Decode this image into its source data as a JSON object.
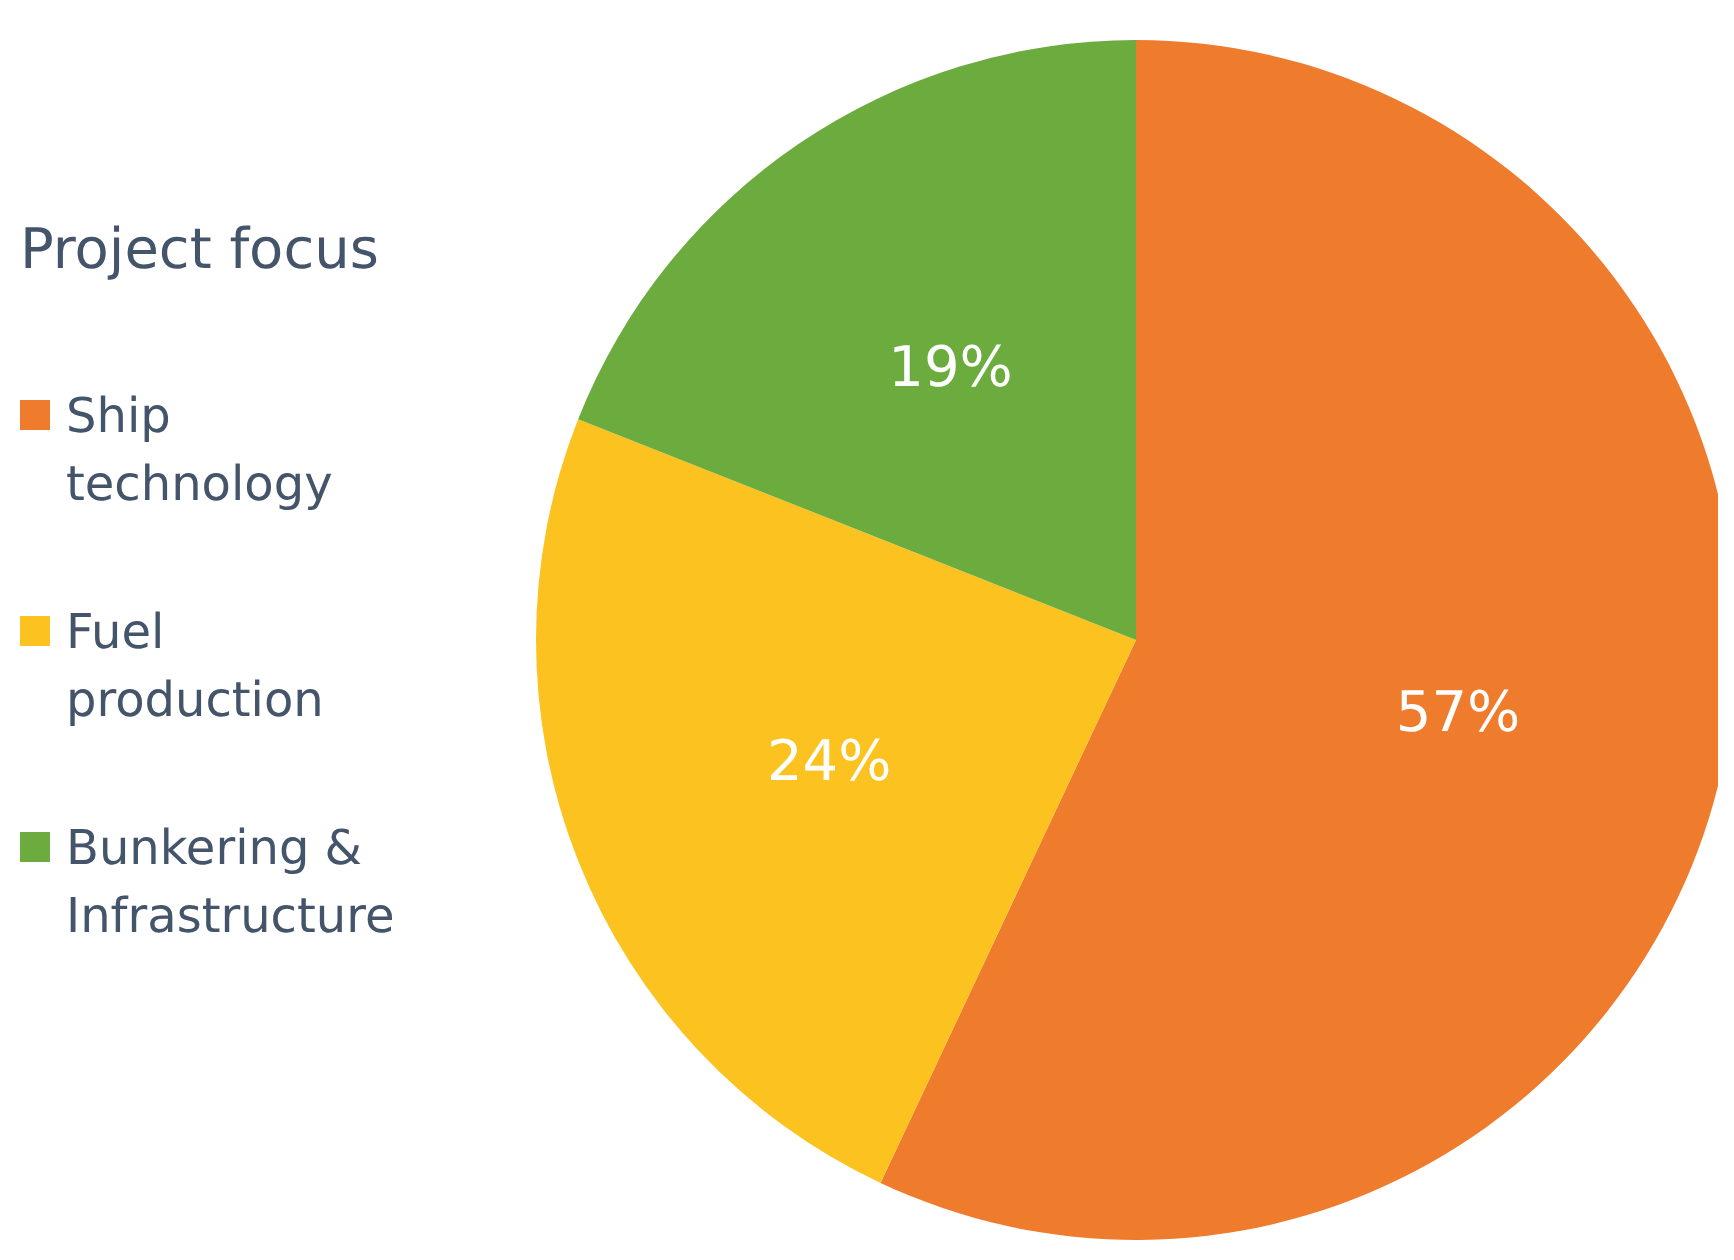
{
  "chart_data": {
    "type": "pie",
    "legend_title": "Project focus",
    "categories": [
      "Ship technology",
      "Fuel production",
      "Bunkering & Infrastructure"
    ],
    "values": [
      57,
      24,
      19
    ],
    "value_labels": [
      "57%",
      "24%",
      "19%"
    ],
    "colors": [
      "#ef7b2c",
      "#fcc21f",
      "#6cac3e"
    ],
    "legend": "left"
  }
}
